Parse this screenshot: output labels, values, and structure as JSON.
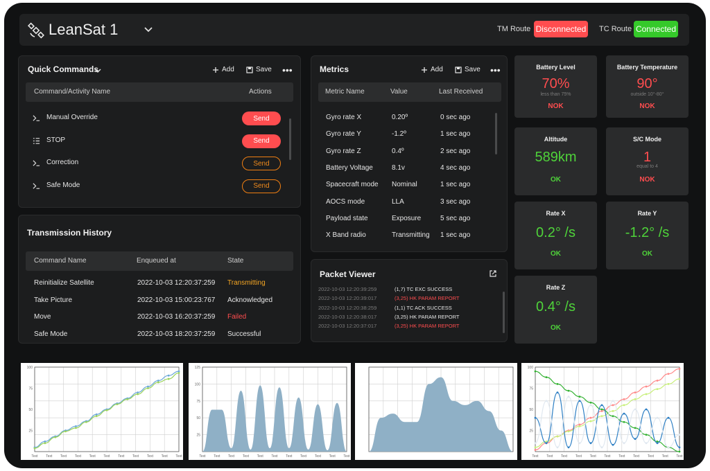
{
  "header": {
    "title": "LeanSat 1",
    "tm_route_label": "TM Route",
    "tm_route_status": "Disconnected",
    "tc_route_label": "TC Route",
    "tc_route_status": "Connected"
  },
  "quick_commands": {
    "title": "Quick Commands",
    "add_label": "Add",
    "save_label": "Save",
    "col_name": "Command/Activity Name",
    "col_actions": "Actions",
    "items": [
      {
        "icon": "terminal-icon",
        "name": "Manual Override",
        "action": "Send",
        "style": "solid"
      },
      {
        "icon": "list-icon",
        "name": "STOP",
        "action": "Send",
        "style": "solid"
      },
      {
        "icon": "terminal-icon",
        "name": "Correction",
        "action": "Send",
        "style": "outline"
      },
      {
        "icon": "terminal-icon",
        "name": "Safe Mode",
        "action": "Send",
        "style": "outline"
      }
    ]
  },
  "transmission_history": {
    "title": "Transmission History",
    "col_name": "Command Name",
    "col_enqueued": "Enqueued at",
    "col_state": "State",
    "rows": [
      {
        "name": "Reinitialize Satellite",
        "enqueued": "2022-10-03 12:20:37:259",
        "state": "Transmitting",
        "state_color": "#f5a623"
      },
      {
        "name": "Take Picture",
        "enqueued": "2022-10-03 15:00:23:767",
        "state": "Acknowledged",
        "state_color": "#e6e6e6"
      },
      {
        "name": "Move",
        "enqueued": "2022-10-03 16:20:37:259",
        "state": "Failed",
        "state_color": "#ff4d4f"
      },
      {
        "name": "Safe Mode",
        "enqueued": "2022-10-03 18:20:37:259",
        "state": "Successful",
        "state_color": "#e6e6e6"
      }
    ]
  },
  "metrics": {
    "title": "Metrics",
    "add_label": "Add",
    "save_label": "Save",
    "col_name": "Metric Name",
    "col_value": "Value",
    "col_received": "Last Received",
    "rows": [
      {
        "name": "Gyro rate X",
        "value": "0.20º",
        "received": "0 sec ago"
      },
      {
        "name": "Gyro rate Y",
        "value": "-1.2º",
        "received": "1 sec ago"
      },
      {
        "name": "Gyro rate Z",
        "value": "0.4º",
        "received": "2 sec ago"
      },
      {
        "name": "Battery Voltage",
        "value": "8.1v",
        "received": "4 sec ago"
      },
      {
        "name": "Spacecraft mode",
        "value": "Nominal",
        "received": "1 sec ago"
      },
      {
        "name": "AOCS mode",
        "value": "LLA",
        "received": "3 sec ago"
      },
      {
        "name": "Payload state",
        "value": "Exposure",
        "received": "5 sec ago"
      },
      {
        "name": "X Band radio",
        "value": "Transmitting",
        "received": "1 sec ago"
      }
    ]
  },
  "packet_viewer": {
    "title": "Packet Viewer",
    "lines": [
      {
        "time": "2022-10-03 12:20:39:259",
        "text": "(1,7) TC EXC SUCCESS",
        "color": "#e6e6e6"
      },
      {
        "time": "2022-10-03 12:20:39:017",
        "text": "(3,25) HK PARAM REPORT",
        "color": "#ff4d4f"
      },
      {
        "time": "2022-10-03 12:20:38:259",
        "text": "(1,1) TC ACK SUCCESS",
        "color": "#e6e6e6"
      },
      {
        "time": "2022-10-03 12:20:38:017",
        "text": "(3,25) HK PARAM REPORT",
        "color": "#e6e6e6"
      },
      {
        "time": "2022-10-03 12:20:37:017",
        "text": "(3,25) HK PARAM REPORT",
        "color": "#ff4d4f"
      }
    ]
  },
  "stats": [
    {
      "title": "Battery Level",
      "value": "70%",
      "sub": "less than 75%",
      "status": "NOK",
      "ok": false
    },
    {
      "title": "Battery Temperature",
      "value": "90°",
      "sub": "outside 10°-80°",
      "status": "NOK",
      "ok": false
    },
    {
      "title": "Altitude",
      "value": "589km",
      "sub": "",
      "status": "OK",
      "ok": true
    },
    {
      "title": "S/C Mode",
      "value": "1",
      "sub": "equal to 4",
      "status": "NOK",
      "ok": false
    },
    {
      "title": "Rate X",
      "value": "0.2° /s",
      "sub": "",
      "status": "OK",
      "ok": true
    },
    {
      "title": "Rate Y",
      "value": "-1.2° /s",
      "sub": "",
      "status": "OK",
      "ok": true
    },
    {
      "title": "Rate Z",
      "value": "0.4° /s",
      "sub": "",
      "status": "OK",
      "ok": true
    }
  ],
  "colors": {
    "accent_red": "#ff4d4f",
    "accent_green": "#35c92a",
    "accent_orange": "#f5a623",
    "area_fill": "#8fb0c6"
  },
  "chart_data": [
    {
      "type": "line",
      "x_tick_label": "Text",
      "yticks": [
        "25",
        "50",
        "75",
        "100"
      ],
      "ylim": [
        0,
        100
      ],
      "grid": true,
      "series": [
        {
          "color": "#6aa7d8",
          "values": [
            5,
            12,
            18,
            25,
            30,
            36,
            44,
            50,
            57,
            63,
            70,
            77,
            84,
            90,
            95
          ]
        },
        {
          "color": "#9bd35a",
          "values": [
            4,
            10,
            17,
            24,
            28,
            35,
            42,
            49,
            56,
            62,
            68,
            75,
            82,
            86,
            93
          ]
        }
      ]
    },
    {
      "type": "area",
      "x_tick_label": "Text",
      "yticks": [
        "25",
        "50",
        "75",
        "100",
        "125"
      ],
      "ylim": [
        0,
        125
      ],
      "grid": true,
      "values": [
        0,
        62,
        62,
        5,
        90,
        3,
        98,
        5,
        95,
        5,
        80,
        3,
        70,
        2,
        72,
        0
      ]
    },
    {
      "type": "area",
      "yticks": [],
      "ylim": [
        0,
        100
      ],
      "grid": true,
      "values": [
        0,
        40,
        45,
        35,
        35,
        80,
        88,
        60,
        55,
        60,
        48,
        25,
        0
      ]
    },
    {
      "type": "line",
      "x_tick_label": "Text",
      "yticks": [
        "25",
        "50",
        "75",
        "100"
      ],
      "ylim": [
        0,
        100
      ],
      "grid": true,
      "series": [
        {
          "color": "#ff8a8a",
          "values": [
            2,
            10,
            18,
            25,
            32,
            40,
            48,
            55,
            62,
            70,
            77,
            84,
            92,
            98
          ]
        },
        {
          "color": "#c8ef7a",
          "values": [
            5,
            12,
            18,
            24,
            30,
            36,
            42,
            48,
            55,
            62,
            68,
            74,
            80,
            86
          ]
        },
        {
          "color": "#34b233",
          "values": [
            95,
            88,
            80,
            72,
            65,
            58,
            50,
            42,
            35,
            28,
            20,
            12,
            5,
            0
          ]
        },
        {
          "color": "#2d7fc4",
          "values": [
            40,
            10,
            70,
            5,
            60,
            10,
            55,
            8,
            45,
            15,
            50,
            10,
            40,
            5
          ]
        },
        {
          "color": "#e0e8f0",
          "values": [
            10,
            60,
            5,
            65,
            10,
            55,
            5,
            60,
            10,
            50,
            10,
            40,
            5,
            20
          ]
        }
      ]
    }
  ]
}
